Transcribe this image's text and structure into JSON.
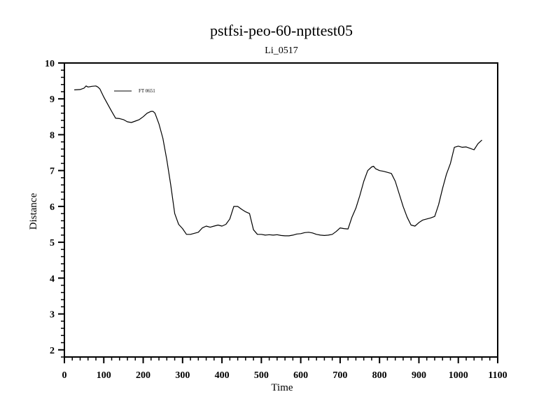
{
  "chart_data": {
    "type": "line",
    "title": "pstfsi-peo-60-npttest05",
    "subtitle": "Li_0517",
    "xlabel": "Time",
    "ylabel": "Distance",
    "xlim": [
      0,
      1100
    ],
    "ylim": [
      1.8,
      10
    ],
    "x_ticks": [
      0,
      100,
      200,
      300,
      400,
      500,
      600,
      700,
      800,
      900,
      1000,
      1100
    ],
    "y_ticks": [
      2,
      3,
      4,
      5,
      6,
      7,
      8,
      9,
      10
    ],
    "legend_position": "top-left",
    "grid": false,
    "series": [
      {
        "name": "FT 0651",
        "color": "#000000",
        "x": [
          25,
          40,
          50,
          55,
          60,
          70,
          80,
          85,
          90,
          100,
          110,
          120,
          130,
          140,
          150,
          160,
          170,
          180,
          190,
          200,
          210,
          220,
          225,
          230,
          240,
          250,
          260,
          270,
          280,
          290,
          300,
          310,
          320,
          330,
          340,
          350,
          360,
          370,
          380,
          390,
          400,
          410,
          420,
          430,
          440,
          450,
          460,
          470,
          480,
          490,
          500,
          510,
          520,
          530,
          540,
          550,
          560,
          570,
          580,
          590,
          600,
          610,
          620,
          630,
          640,
          650,
          660,
          670,
          680,
          690,
          700,
          710,
          720,
          730,
          740,
          750,
          760,
          770,
          780,
          785,
          790,
          800,
          810,
          820,
          830,
          840,
          850,
          860,
          870,
          880,
          890,
          900,
          910,
          920,
          930,
          940,
          950,
          960,
          970,
          980,
          990,
          1000,
          1010,
          1020,
          1030,
          1040,
          1050,
          1060
        ],
        "values": [
          9.25,
          9.26,
          9.3,
          9.36,
          9.33,
          9.35,
          9.36,
          9.33,
          9.28,
          9.05,
          8.85,
          8.65,
          8.46,
          8.45,
          8.42,
          8.36,
          8.34,
          8.38,
          8.42,
          8.5,
          8.6,
          8.65,
          8.65,
          8.6,
          8.3,
          7.9,
          7.3,
          6.6,
          5.8,
          5.5,
          5.38,
          5.22,
          5.22,
          5.25,
          5.28,
          5.4,
          5.45,
          5.42,
          5.45,
          5.48,
          5.45,
          5.5,
          5.65,
          6.0,
          6.0,
          5.92,
          5.85,
          5.8,
          5.35,
          5.22,
          5.22,
          5.2,
          5.21,
          5.2,
          5.21,
          5.19,
          5.18,
          5.18,
          5.2,
          5.23,
          5.24,
          5.27,
          5.28,
          5.26,
          5.22,
          5.2,
          5.19,
          5.2,
          5.22,
          5.3,
          5.4,
          5.38,
          5.37,
          5.7,
          5.95,
          6.3,
          6.7,
          7.0,
          7.1,
          7.12,
          7.05,
          7.0,
          6.98,
          6.95,
          6.92,
          6.7,
          6.35,
          6.0,
          5.7,
          5.48,
          5.45,
          5.55,
          5.62,
          5.65,
          5.68,
          5.72,
          6.05,
          6.5,
          6.9,
          7.2,
          7.65,
          7.68,
          7.65,
          7.66,
          7.62,
          7.58,
          7.75,
          7.85
        ]
      }
    ]
  }
}
